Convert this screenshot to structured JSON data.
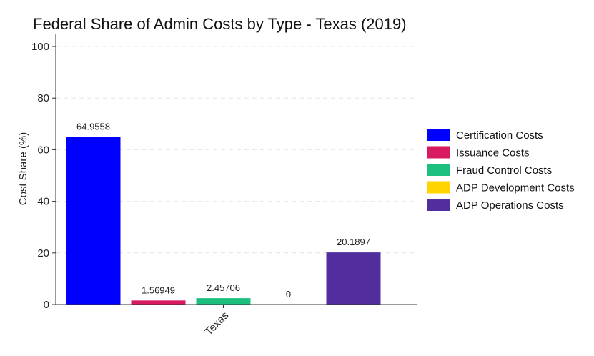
{
  "chart_data": {
    "type": "bar",
    "title": "Federal Share of Admin Costs by Type - Texas (2019)",
    "xlabel": "",
    "ylabel": "Cost Share (%)",
    "ylim": [
      0,
      105
    ],
    "yticks": [
      0,
      20,
      40,
      60,
      80,
      100
    ],
    "categories": [
      "Texas"
    ],
    "grid": "horizontal-dashed",
    "legend_position": "right",
    "series": [
      {
        "name": "Certification Costs",
        "color": "#0000ff",
        "values": [
          64.9558
        ],
        "label": "64.9558"
      },
      {
        "name": "Issuance Costs",
        "color": "#d81b60",
        "values": [
          1.56949
        ],
        "label": "1.56949"
      },
      {
        "name": "Fraud Control Costs",
        "color": "#1dbf7f",
        "values": [
          2.45706
        ],
        "label": "2.45706"
      },
      {
        "name": "ADP Development Costs",
        "color": "#ffd400",
        "values": [
          0
        ],
        "label": "0"
      },
      {
        "name": "ADP Operations Costs",
        "color": "#512d9d",
        "values": [
          20.1897
        ],
        "label": "20.1897"
      }
    ]
  }
}
